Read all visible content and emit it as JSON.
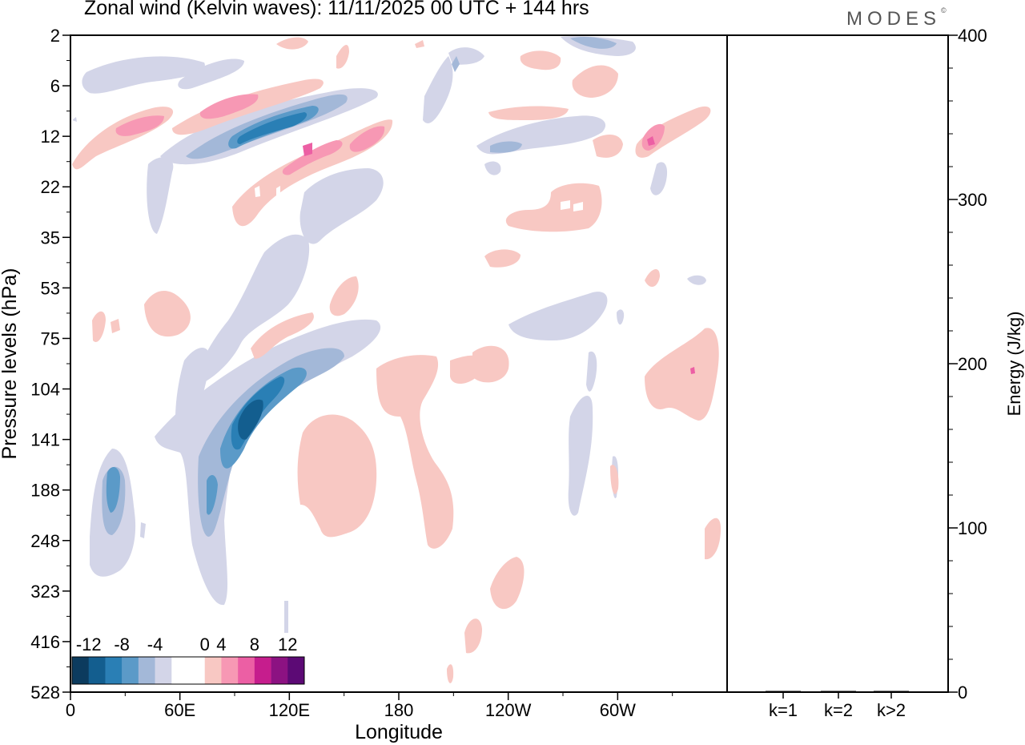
{
  "title": "Zonal wind (Kelvin waves):  11/11/2025  00 UTC  + 144 hrs",
  "brand": "MODES",
  "brand_mark": "©",
  "chart_data": [
    {
      "type": "heatmap",
      "title": "Zonal wind (Kelvin waves)",
      "xlabel": "Longitude",
      "ylabel": "Pressure levels (hPa)",
      "x_ticks": [
        "0",
        "60E",
        "120E",
        "180",
        "120W",
        "60W"
      ],
      "y_ticks": [
        "2",
        "6",
        "12",
        "22",
        "35",
        "53",
        "75",
        "104",
        "141",
        "188",
        "248",
        "323",
        "416",
        "528"
      ],
      "colorbar": {
        "labels": [
          "-12",
          "-8",
          "-4",
          "0",
          "4",
          "8",
          "12"
        ],
        "colors": [
          "#0c3b5e",
          "#135e8f",
          "#2a7fb5",
          "#5b9ac8",
          "#a3b8d8",
          "#d3d5e8",
          "#ffffff",
          "#ffffff",
          "#f8c8c3",
          "#f798b4",
          "#ec5fa4",
          "#c61d8d",
          "#8c1282",
          "#5c0a75"
        ]
      },
      "features": [
        {
          "sign": "negative",
          "peak": -12,
          "longitude": "100E",
          "pressure_hPa": 141
        },
        {
          "sign": "negative",
          "peak": -8,
          "longitude": "20E",
          "pressure_hPa": 188
        },
        {
          "sign": "negative",
          "peak": -8,
          "longitude": "110E",
          "pressure_hPa": 12
        },
        {
          "sign": "positive",
          "peak": 8,
          "longitude": "90E",
          "pressure_hPa": 12
        },
        {
          "sign": "positive",
          "peak": 8,
          "longitude": "130E",
          "pressure_hPa": 22
        },
        {
          "sign": "positive",
          "peak": 8,
          "longitude": "60W",
          "pressure_hPa": 12
        },
        {
          "sign": "positive",
          "peak": 4,
          "longitude": "130E",
          "pressure_hPa": 188
        },
        {
          "sign": "positive",
          "peak": 4,
          "longitude": "180",
          "pressure_hPa": 141
        }
      ]
    },
    {
      "type": "bar",
      "ylabel": "Energy (J/kg)",
      "categories": [
        "k=1",
        "k=2",
        "k>2"
      ],
      "values": [
        0.5,
        0.3,
        0.3
      ],
      "ylim": [
        0,
        400
      ],
      "y_ticks": [
        "0",
        "100",
        "200",
        "300",
        "400"
      ]
    }
  ]
}
